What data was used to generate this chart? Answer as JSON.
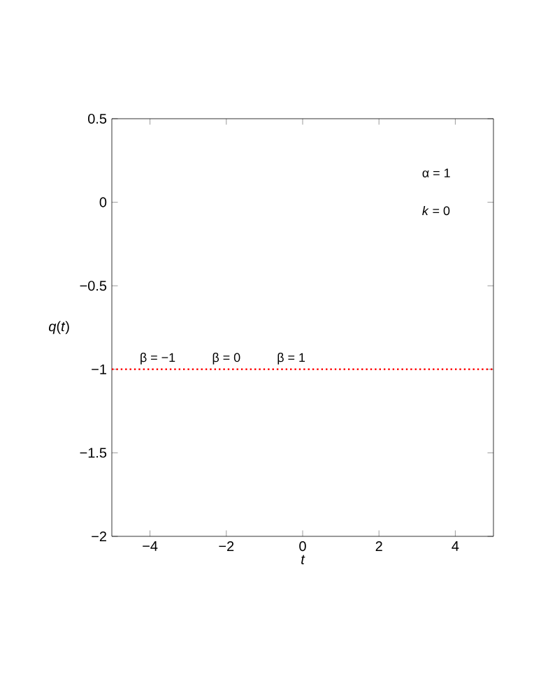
{
  "chart_data": {
    "type": "line",
    "xlabel": "t",
    "ylabel": "*q*(*t*)",
    "xlim": [
      -5,
      5
    ],
    "ylim": [
      -2,
      0.5
    ],
    "xticks": [
      {
        "value": -4,
        "label": "−4"
      },
      {
        "value": -2,
        "label": "−2"
      },
      0,
      2,
      4
    ],
    "yticks": [
      {
        "value": -2,
        "label": "−2"
      },
      {
        "value": -1.5,
        "label": "−1.5"
      },
      {
        "value": -1,
        "label": "−1"
      },
      {
        "value": -0.5,
        "label": "−0.5"
      },
      0,
      0.5
    ],
    "series": [
      {
        "color": "#ff0000",
        "x": [
          -5,
          5
        ],
        "values": [
          -1,
          -1
        ],
        "line_style": "dotted"
      }
    ],
    "annotations": [
      {
        "text": "β = −1",
        "x": -3.8,
        "y": -1
      },
      {
        "text": "β = 0",
        "x": -2.0,
        "y": -1
      },
      {
        "text": "β = 1",
        "x": -0.3,
        "y": -1
      },
      "α = 1",
      "*k* = 0"
    ],
    "grid": false
  }
}
